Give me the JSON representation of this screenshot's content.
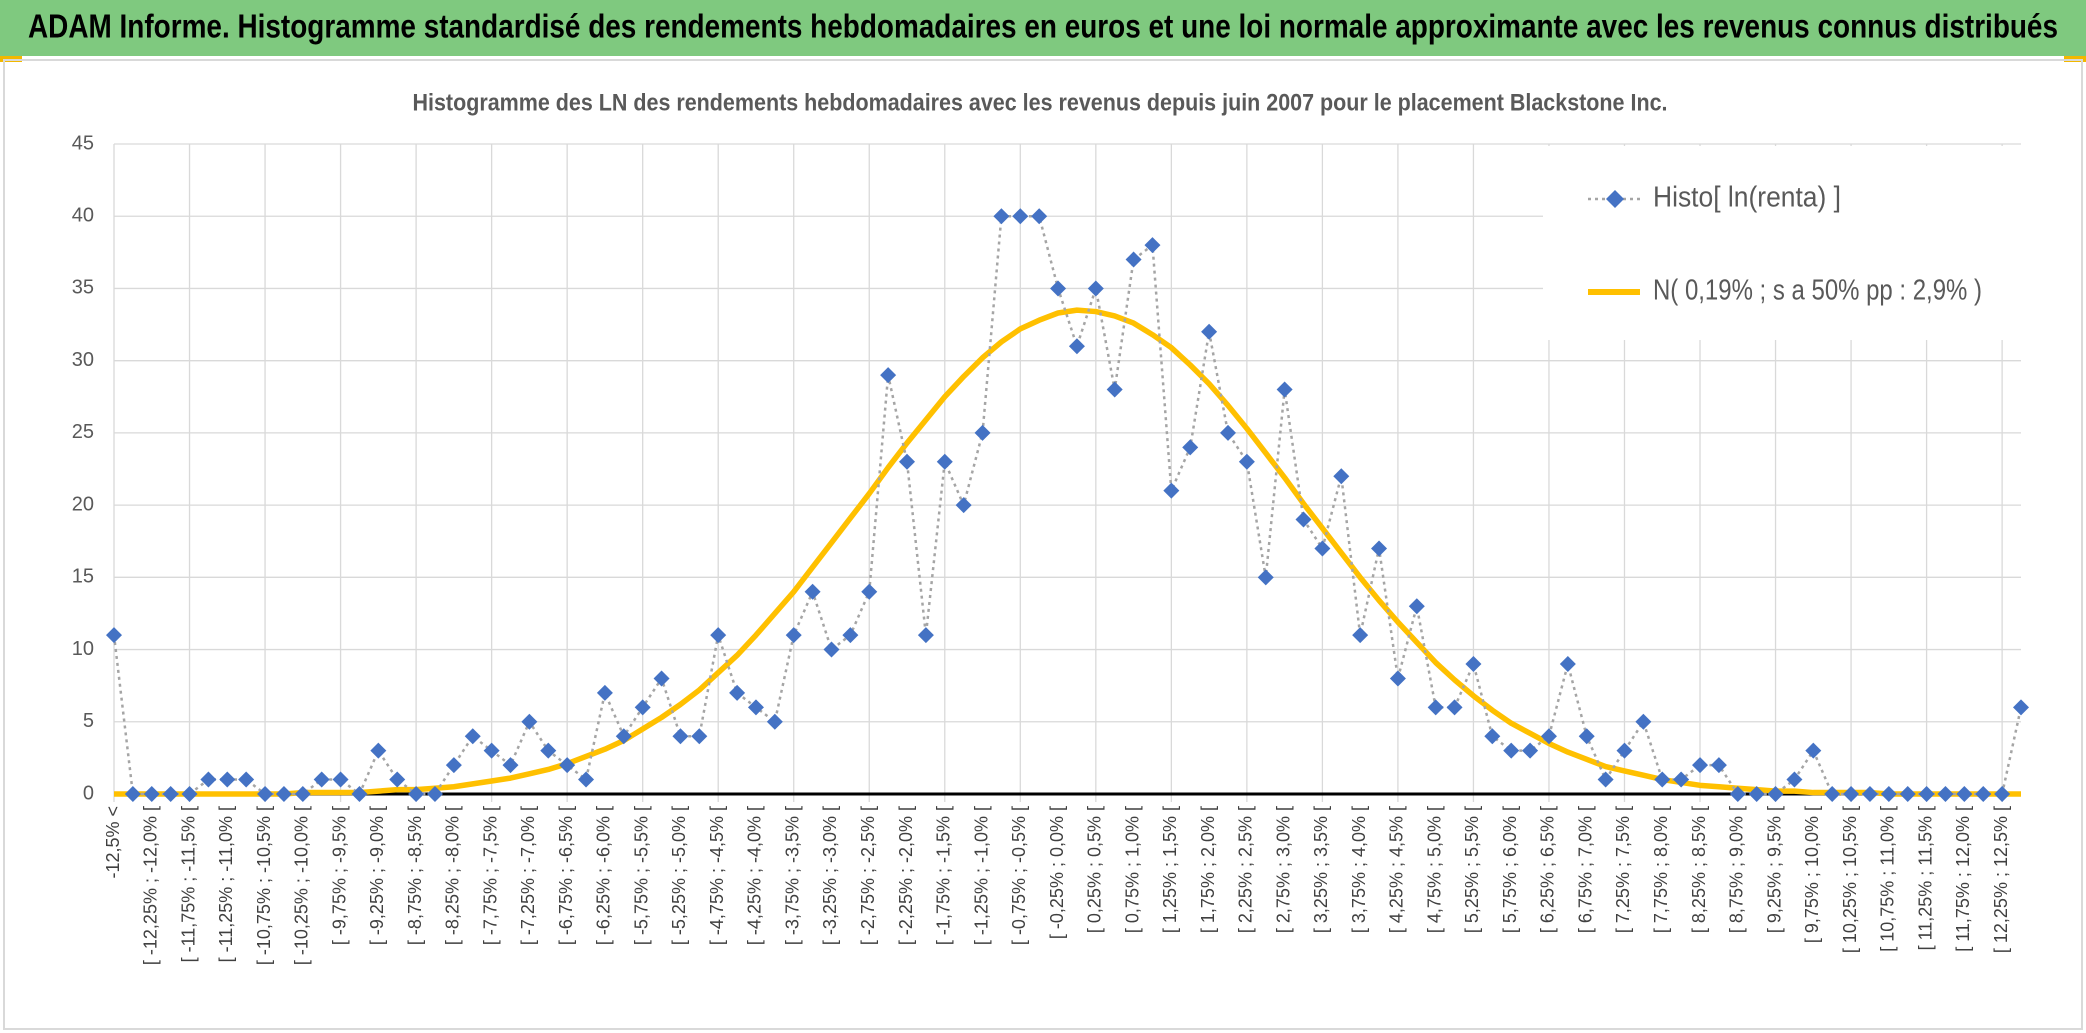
{
  "header": {
    "title": "ADAM Informe. Histogramme standardisé des rendements hebdomadaires en euros et une loi normale approximante avec les revenus connus distribués"
  },
  "chart_data": {
    "type": "line",
    "title": "Histogramme des LN des rendements hebdomadaires avec les revenus depuis juin 2007 pour le placement Blackstone Inc.",
    "categories": [
      "-12,5% <",
      null,
      "[ -12,25% ; -12,0% [",
      null,
      "[ -11,75% ; -11,5% [",
      null,
      "[ -11,25% ; -11,0% [",
      null,
      "[ -10,75% ; -10,5% [",
      null,
      "[ -10,25% ; -10,0% [",
      null,
      "[ -9,75% ; -9,5% [",
      null,
      "[ -9,25% ; -9,0% [",
      null,
      "[ -8,75% ; -8,5% [",
      null,
      "[ -8,25% ; -8,0% [",
      null,
      "[ -7,75% ; -7,5% [",
      null,
      "[ -7,25% ; -7,0% [",
      null,
      "[ -6,75% ; -6,5% [",
      null,
      "[ -6,25% ; -6,0% [",
      null,
      "[ -5,75% ; -5,5% [",
      null,
      "[ -5,25% ; -5,0% [",
      null,
      "[ -4,75% ; -4,5% [",
      null,
      "[ -4,25% ; -4,0% [",
      null,
      "[ -3,75% ; -3,5% [",
      null,
      "[ -3,25% ; -3,0% [",
      null,
      "[ -2,75% ; -2,5% [",
      null,
      "[ -2,25% ; -2,0% [",
      null,
      "[ -1,75% ; -1,5% [",
      null,
      "[ -1,25% ; -1,0% [",
      null,
      "[ -0,75% ; -0,5% [",
      null,
      "[ -0,25% ; 0,0% [",
      null,
      "[ 0,25% ; 0,5% [",
      null,
      "[ 0,75% ; 1,0% [",
      null,
      "[ 1,25% ; 1,5% [",
      null,
      "[ 1,75% ; 2,0% [",
      null,
      "[ 2,25% ; 2,5% [",
      null,
      "[ 2,75% ; 3,0% [",
      null,
      "[ 3,25% ; 3,5% [",
      null,
      "[ 3,75% ; 4,0% [",
      null,
      "[ 4,25% ; 4,5% [",
      null,
      "[ 4,75% ; 5,0% [",
      null,
      "[ 5,25% ; 5,5% [",
      null,
      "[ 5,75% ; 6,0% [",
      null,
      "[ 6,25% ; 6,5% [",
      null,
      "[ 6,75% ; 7,0% [",
      null,
      "[ 7,25% ; 7,5% [",
      null,
      "[ 7,75% ; 8,0% [",
      null,
      "[ 8,25% ; 8,5% [",
      null,
      "[ 8,75% ; 9,0% [",
      null,
      "[ 9,25% ; 9,5% [",
      null,
      "[ 9,75% ; 10,0% [",
      null,
      "[ 10,25% ; 10,5% [",
      null,
      "[ 10,75% ; 11,0% [",
      null,
      "[ 11,25% ; 11,5% [",
      null,
      "[ 11,75% ; 12,0% [",
      null,
      "[ 12,25% ; 12,5% [",
      null
    ],
    "series": [
      {
        "name": "Histo[ ln(renta) ]",
        "color": "#4472c4",
        "line_color": "#a5a5a5",
        "marker": "diamond",
        "dashed": true,
        "values": [
          11,
          0,
          0,
          0,
          0,
          1,
          1,
          1,
          0,
          0,
          0,
          1,
          1,
          0,
          3,
          1,
          0,
          0,
          2,
          4,
          3,
          2,
          5,
          3,
          2,
          1,
          7,
          4,
          6,
          8,
          4,
          4,
          11,
          7,
          6,
          5,
          11,
          14,
          10,
          11,
          14,
          29,
          23,
          11,
          23,
          20,
          25,
          40,
          40,
          40,
          35,
          31,
          35,
          28,
          37,
          38,
          21,
          24,
          32,
          25,
          23,
          15,
          28,
          19,
          17,
          22,
          11,
          17,
          8,
          13,
          6,
          6,
          9,
          4,
          3,
          3,
          4,
          9,
          4,
          1,
          3,
          5,
          1,
          1,
          2,
          2,
          0,
          0,
          0,
          1,
          3,
          0,
          0,
          0,
          0,
          0,
          0,
          0,
          0,
          0,
          0,
          6
        ]
      },
      {
        "name": "N( 0,19% ; s a 50% pp : 2,9% )",
        "color": "#ffc000",
        "values": [
          0,
          0,
          0,
          0,
          0,
          0,
          0,
          0,
          0,
          0,
          0.1,
          0.1,
          0.1,
          0.1,
          0.2,
          0.3,
          0.3,
          0.4,
          0.5,
          0.7,
          0.9,
          1.1,
          1.4,
          1.7,
          2.1,
          2.6,
          3.1,
          3.7,
          4.5,
          5.3,
          6.2,
          7.2,
          8.4,
          9.6,
          11.0,
          12.5,
          14.0,
          15.7,
          17.4,
          19.1,
          20.8,
          22.6,
          24.3,
          25.9,
          27.5,
          28.9,
          30.2,
          31.3,
          32.2,
          32.8,
          33.3,
          33.5,
          33.4,
          33.1,
          32.6,
          31.8,
          30.9,
          29.7,
          28.4,
          26.9,
          25.3,
          23.6,
          21.9,
          20.1,
          18.4,
          16.7,
          15.0,
          13.4,
          11.9,
          10.5,
          9.1,
          7.9,
          6.8,
          5.8,
          4.9,
          4.2,
          3.5,
          2.9,
          2.4,
          1.9,
          1.6,
          1.3,
          1.0,
          0.8,
          0.6,
          0.5,
          0.4,
          0.3,
          0.2,
          0.2,
          0.1,
          0.1,
          0.1,
          0.1,
          0,
          0,
          0,
          0,
          0,
          0,
          0,
          0
        ]
      }
    ],
    "ylim": [
      0,
      45
    ],
    "yticks": [
      0,
      5,
      10,
      15,
      20,
      25,
      30,
      35,
      40,
      45
    ],
    "grid": true,
    "legend": "upper right"
  }
}
